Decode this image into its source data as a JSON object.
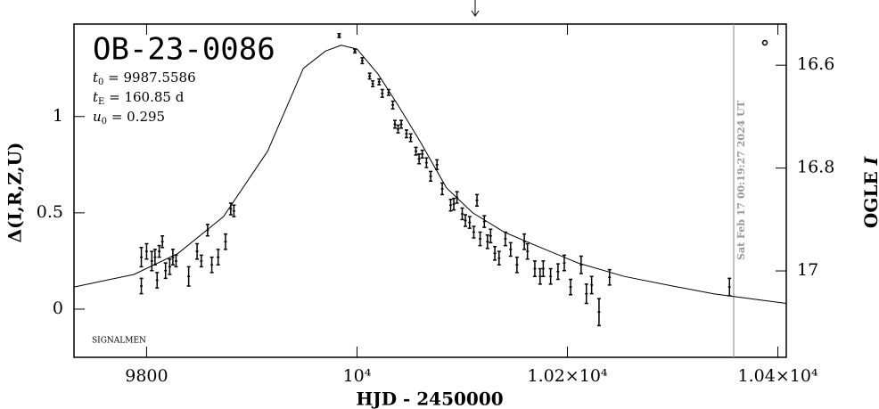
{
  "chart_data": {
    "type": "scatter",
    "title": "OB-23-0086",
    "params": [
      {
        "symbol": "t",
        "sub": "0",
        "text": " = 9987.5586"
      },
      {
        "symbol": "t",
        "sub": "E",
        "text": " = 160.85 d"
      },
      {
        "symbol": "u",
        "sub": "0",
        "text": " = 0.295"
      }
    ],
    "note": "SIGNALMEN",
    "timestamp": "Sat Feb 17 00:19:27 2024 UT",
    "x_label": "HJD - 2450000",
    "y_label": "Δ(I,R,Z,U)",
    "y2_label": "OGLE",
    "y2_label_band": "I",
    "xlim": [
      9731,
      10408
    ],
    "xticks": [
      {
        "value": 9800,
        "label": "9800"
      },
      {
        "value": 10000,
        "label": "10⁴"
      },
      {
        "value": 10200,
        "label": "1.02×10⁴"
      },
      {
        "value": 10400,
        "label": "1.04×10⁴"
      }
    ],
    "ylim": [
      -0.25,
      1.48
    ],
    "yticks": [
      0,
      0.5,
      1
    ],
    "y2lim": [
      17.168,
      16.52
    ],
    "y2ticks": [
      16.6,
      16.8,
      17
    ],
    "color": "#000000",
    "x": [
      9795,
      9795,
      9800,
      9805,
      9808,
      9810,
      9812,
      9815,
      9818,
      9822,
      9825,
      9828,
      9840,
      9848,
      9852,
      9858,
      9862,
      9868,
      9875,
      9880,
      9883,
      9983,
      9998,
      10005,
      10012,
      10015,
      10021,
      10024,
      10030,
      10034,
      10036,
      10039,
      10042,
      10047,
      10051,
      10056,
      10059,
      10062,
      10066,
      10070,
      10076,
      10081,
      10089,
      10092,
      10095,
      10100,
      10103,
      10107,
      10111,
      10114,
      10117,
      10121,
      10124,
      10127,
      10131,
      10135,
      10141,
      10146,
      10152,
      10159,
      10162,
      10169,
      10174,
      10177,
      10184,
      10191,
      10197,
      10203,
      10213,
      10218,
      10223,
      10230,
      10240,
      10354
    ],
    "values": [
      0.12,
      0.27,
      0.3,
      0.25,
      0.27,
      0.15,
      0.3,
      0.35,
      0.2,
      0.22,
      0.27,
      0.25,
      0.17,
      0.3,
      0.25,
      0.41,
      0.23,
      0.27,
      0.35,
      0.52,
      0.51,
      1.42,
      1.34,
      1.29,
      1.21,
      1.17,
      1.18,
      1.12,
      1.125,
      1.06,
      0.96,
      0.935,
      0.96,
      0.91,
      0.89,
      0.82,
      0.78,
      0.805,
      0.76,
      0.69,
      0.75,
      0.625,
      0.54,
      0.545,
      0.58,
      0.495,
      0.46,
      0.45,
      0.4,
      0.565,
      0.365,
      0.455,
      0.35,
      0.38,
      0.29,
      0.265,
      0.365,
      0.31,
      0.23,
      0.35,
      0.3,
      0.21,
      0.17,
      0.21,
      0.17,
      0.195,
      0.24,
      0.115,
      0.23,
      0.08,
      0.125,
      -0.015,
      0.165,
      0.115
    ],
    "errors": [
      0.04,
      0.05,
      0.04,
      0.05,
      0.04,
      0.04,
      0.03,
      0.03,
      0.04,
      0.04,
      0.04,
      0.03,
      0.05,
      0.04,
      0.03,
      0.03,
      0.04,
      0.04,
      0.04,
      0.03,
      0.03,
      0.01,
      0.01,
      0.015,
      0.015,
      0.015,
      0.015,
      0.02,
      0.015,
      0.02,
      0.02,
      0.02,
      0.02,
      0.02,
      0.02,
      0.02,
      0.025,
      0.02,
      0.025,
      0.025,
      0.025,
      0.03,
      0.03,
      0.03,
      0.03,
      0.03,
      0.03,
      0.03,
      0.03,
      0.03,
      0.035,
      0.03,
      0.035,
      0.035,
      0.035,
      0.035,
      0.035,
      0.035,
      0.04,
      0.04,
      0.04,
      0.04,
      0.04,
      0.04,
      0.04,
      0.04,
      0.04,
      0.04,
      0.045,
      0.05,
      0.045,
      0.07,
      0.04,
      0.045
    ],
    "model": {
      "x": [
        9731,
        9788,
        9830,
        9873,
        9915,
        9949,
        9970,
        9985,
        10000,
        10020,
        10040,
        10060,
        10085,
        10110,
        10140,
        10170,
        10210,
        10254,
        10300,
        10339,
        10408
      ],
      "values": [
        0.115,
        0.18,
        0.29,
        0.48,
        0.82,
        1.25,
        1.34,
        1.37,
        1.35,
        1.22,
        1.05,
        0.87,
        0.63,
        0.5,
        0.4,
        0.33,
        0.24,
        0.17,
        0.12,
        0.08,
        0.03
      ]
    }
  }
}
